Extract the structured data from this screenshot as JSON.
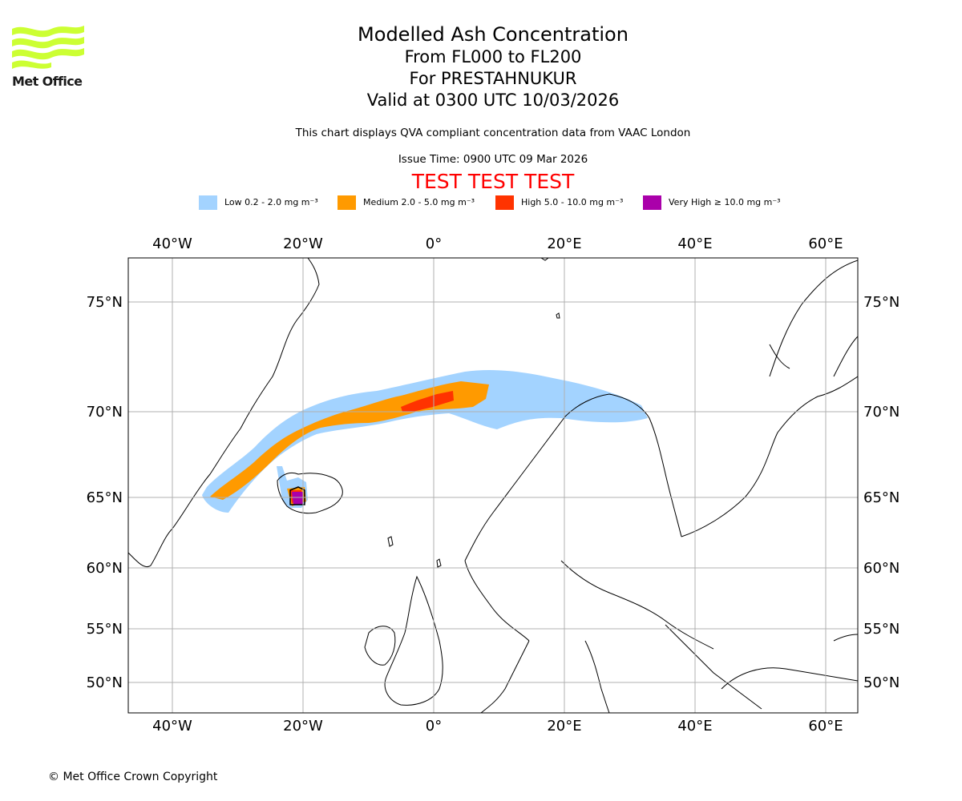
{
  "header": {
    "logo_text": "Met Office",
    "title": "Modelled Ash Concentration",
    "flight_levels": "From FL000 to FL200",
    "volcano": "For PRESTAHNUKUR",
    "valid_time": "Valid at 0300 UTC 10/03/2026",
    "compliance_note": "This chart displays QVA compliant concentration data from VAAC London",
    "issue_time": "Issue Time: 0900 UTC 09 Mar 2026",
    "test_banner": "TEST TEST TEST"
  },
  "legend": [
    {
      "label": "Low 0.2 - 2.0 mg m⁻³",
      "color": "#a3d3ff"
    },
    {
      "label": "Medium 2.0 - 5.0 mg m⁻³",
      "color": "#ff9a00"
    },
    {
      "label": "High 5.0 - 10.0 mg m⁻³",
      "color": "#ff3300"
    },
    {
      "label": "Very High ≥ 10.0 mg m⁻³",
      "color": "#aa00aa"
    }
  ],
  "map": {
    "lon_ticks": [
      "40°W",
      "20°W",
      "0°",
      "20°E",
      "40°E",
      "60°E"
    ],
    "lat_ticks": [
      "75°N",
      "70°N",
      "65°N",
      "60°N",
      "55°N",
      "50°N"
    ],
    "grid_color": "#b0b0b0",
    "coast_color": "#000000"
  },
  "footer": {
    "copyright": "© Met Office Crown Copyright"
  }
}
